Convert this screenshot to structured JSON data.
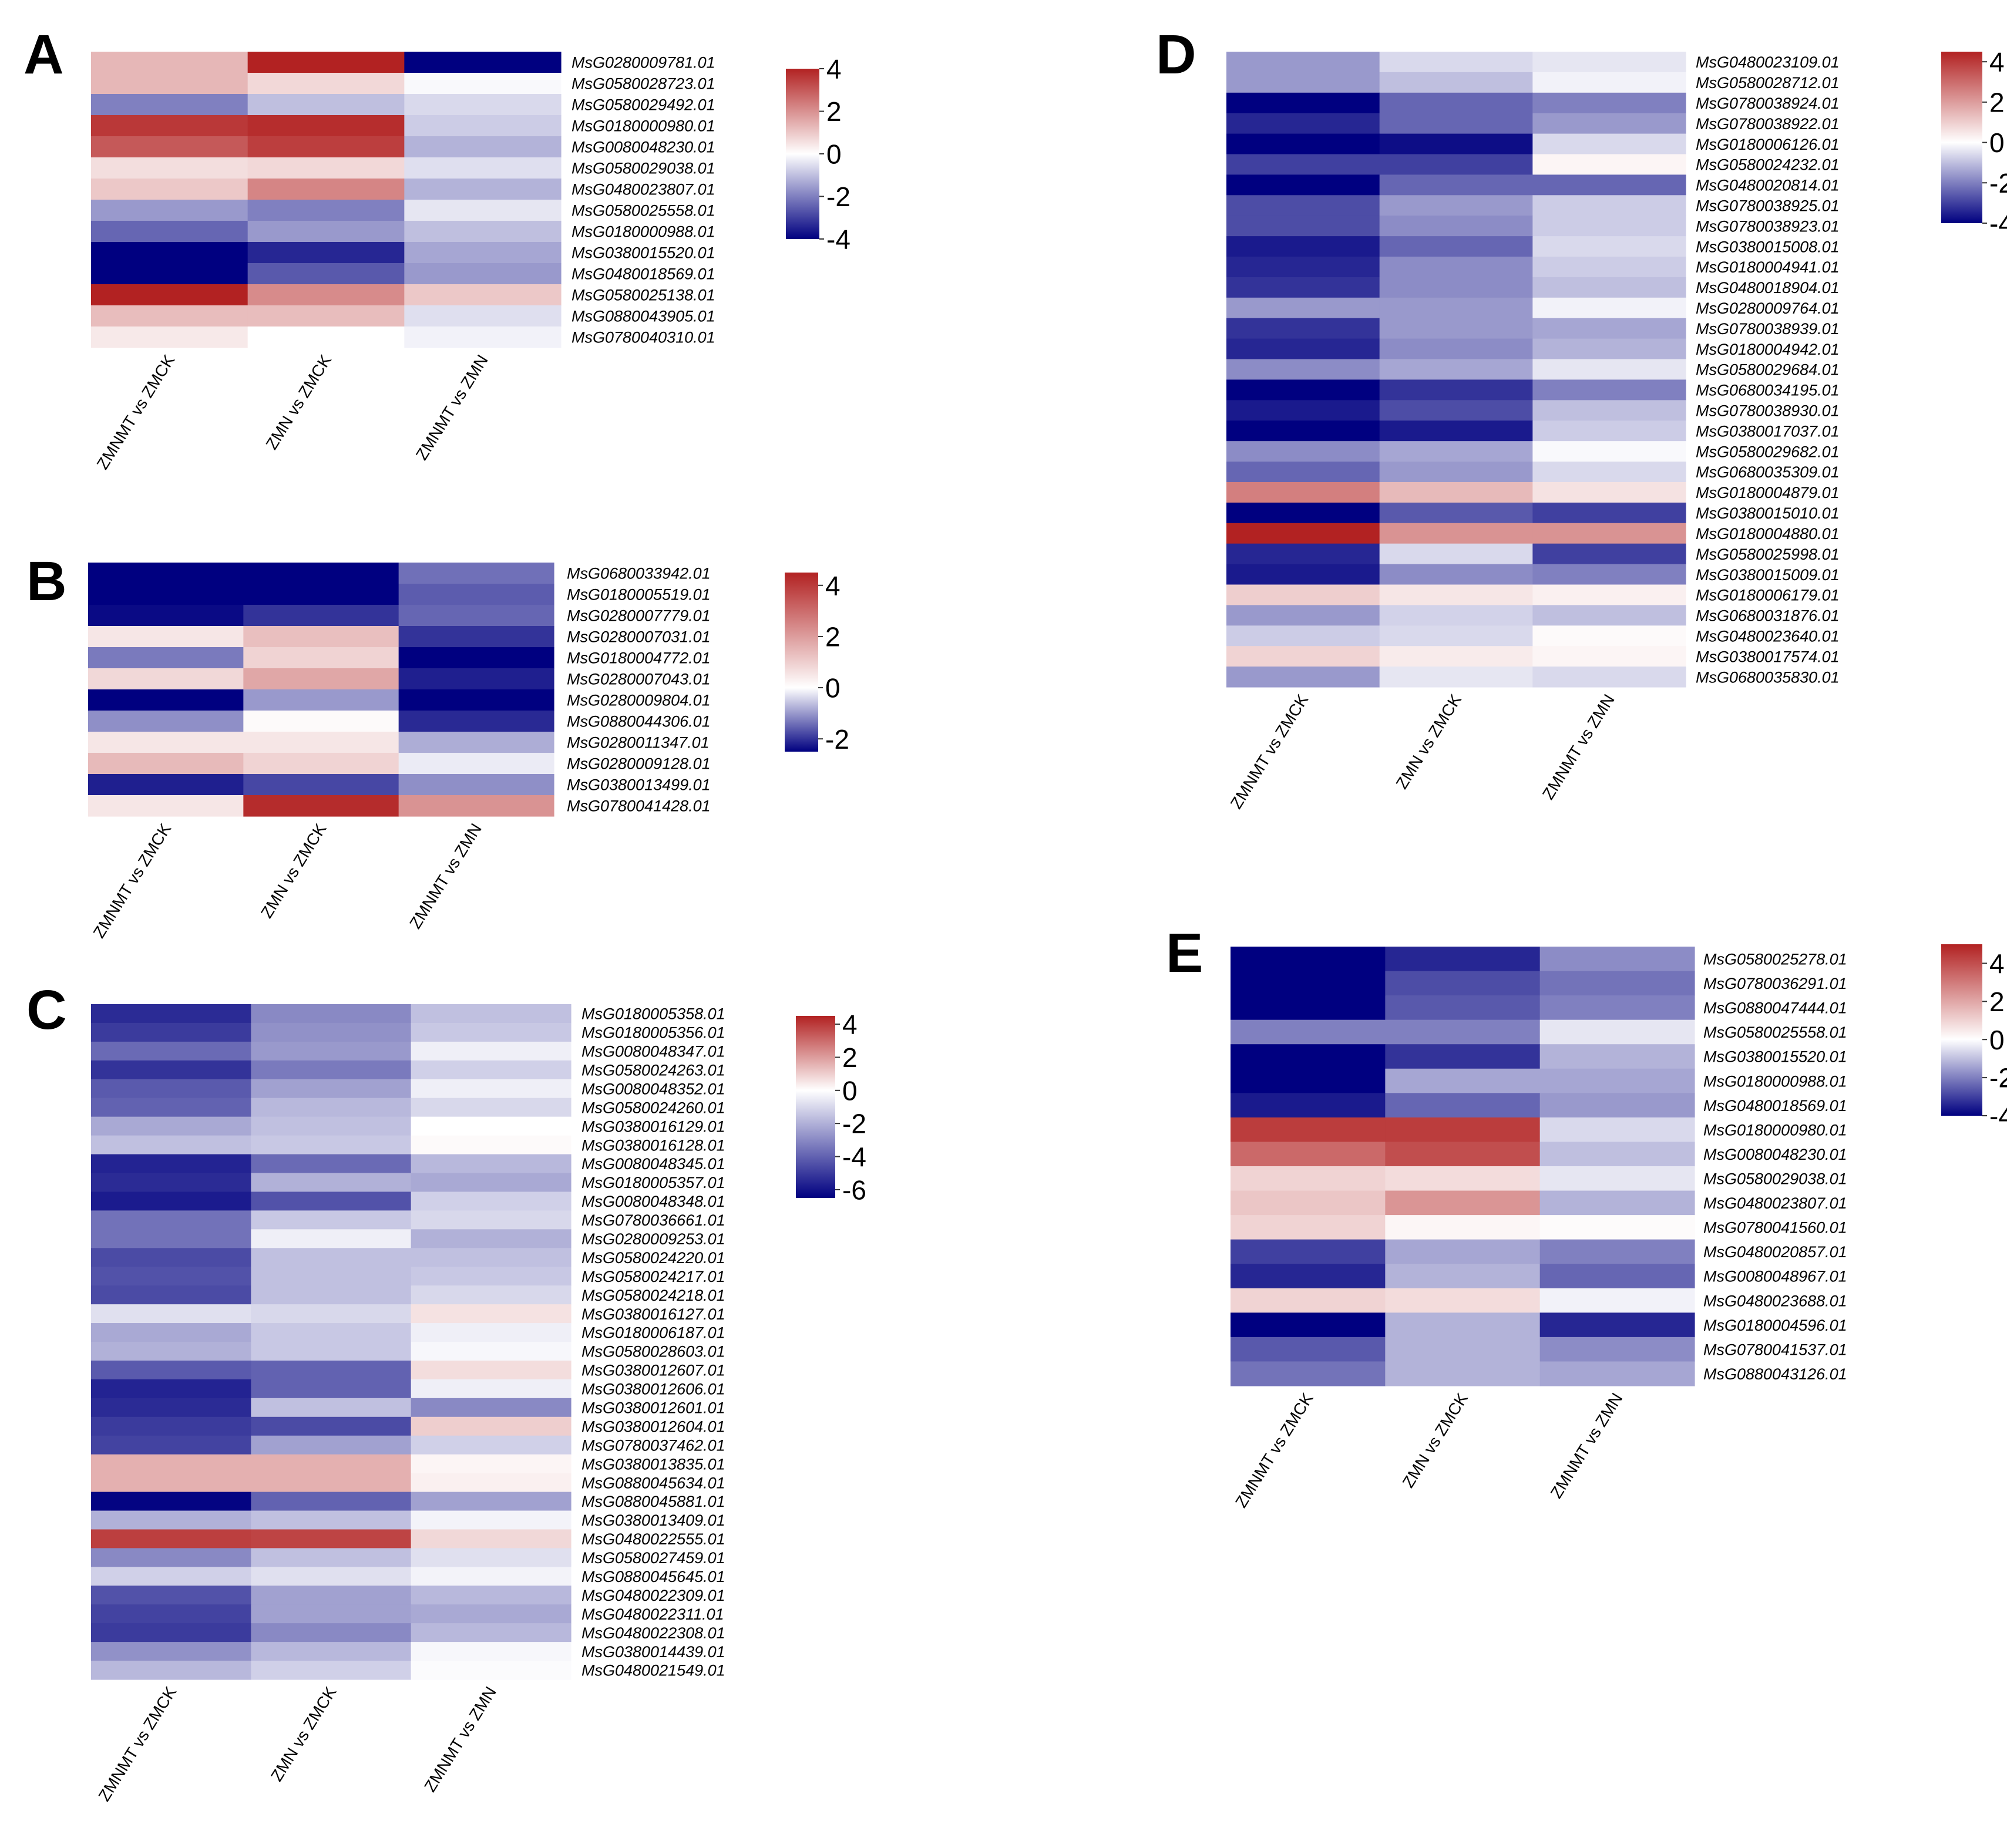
{
  "color_scale": {
    "low": "#000080",
    "mid": "#ffffff",
    "high": "#b22222"
  },
  "chart_data": [
    {
      "panel": "A",
      "type": "heatmap",
      "columns": [
        "ZMNMT vs ZMCK",
        "ZMN vs ZMCK",
        "ZMNMT vs ZMN"
      ],
      "rows": [
        "MsG0280009781.01",
        "MsG0580028723.01",
        "MsG0580029492.01",
        "MsG0180000980.01",
        "MsG0080048230.01",
        "MsG0580029038.01",
        "MsG0480023807.01",
        "MsG0580025558.01",
        "MsG0180000988.01",
        "MsG0380015520.01",
        "MsG0480018569.01",
        "MsG0580025138.01",
        "MsG0880043905.01",
        "MsG0780040310.01"
      ],
      "values": [
        [
          1.3,
          4.3,
          -4.0
        ],
        [
          1.3,
          0.7,
          -0.1
        ],
        [
          -2.0,
          -1.0,
          -0.6
        ],
        [
          3.6,
          3.8,
          -0.8
        ],
        [
          3.0,
          3.5,
          -1.2
        ],
        [
          0.6,
          0.7,
          -0.5
        ],
        [
          1.0,
          2.2,
          -1.2
        ],
        [
          -1.6,
          -2.0,
          -0.4
        ],
        [
          -2.4,
          -1.6,
          -1.0
        ],
        [
          -4.6,
          -3.4,
          -1.4
        ],
        [
          -4.1,
          -2.6,
          -1.6
        ],
        [
          4.3,
          2.1,
          1.0
        ],
        [
          1.2,
          1.2,
          -0.5
        ],
        [
          0.4,
          0.0,
          -0.2
        ]
      ],
      "colorbar": {
        "min": -4,
        "max": 4,
        "ticks": [
          4,
          2,
          0,
          -2,
          -4
        ]
      }
    },
    {
      "panel": "B",
      "type": "heatmap",
      "columns": [
        "ZMNMT vs ZMCK",
        "ZMN vs ZMCK",
        "ZMNMT vs ZMN"
      ],
      "rows": [
        "MsG0680033942.01",
        "MsG0180005519.01",
        "MsG0280007779.01",
        "MsG0280007031.01",
        "MsG0180004772.01",
        "MsG0280007043.01",
        "MsG0280009804.01",
        "MsG0880044306.01",
        "MsG0280011347.01",
        "MsG0280009128.01",
        "MsG0380013499.01",
        "MsG0780041428.01"
      ],
      "values": [
        [
          -3.2,
          -3.0,
          -1.4
        ],
        [
          -3.6,
          -3.2,
          -1.6
        ],
        [
          -2.4,
          -2.0,
          -1.5
        ],
        [
          0.5,
          1.3,
          -2.0
        ],
        [
          -1.3,
          0.9,
          -3.6
        ],
        [
          0.8,
          1.8,
          -2.2
        ],
        [
          -3.8,
          -1.0,
          -3.2
        ],
        [
          -1.1,
          0.1,
          -2.1
        ],
        [
          0.5,
          0.5,
          -0.8
        ],
        [
          1.4,
          0.9,
          -0.2
        ],
        [
          -2.2,
          -1.8,
          -1.1
        ],
        [
          0.5,
          4.3,
          2.2
        ]
      ],
      "colorbar": {
        "min": -2.5,
        "max": 4.5,
        "ticks": [
          4,
          2,
          0,
          -2
        ]
      }
    },
    {
      "panel": "C",
      "type": "heatmap",
      "columns": [
        "ZMNMT vs ZMCK",
        "ZMN vs ZMCK",
        "ZMNMT vs ZMN"
      ],
      "rows": [
        "MsG0180005358.01",
        "MsG0180005356.01",
        "MsG0080048347.01",
        "MsG0580024263.01",
        "MsG0080048352.01",
        "MsG0580024260.01",
        "MsG0380016129.01",
        "MsG0380016128.01",
        "MsG0080048345.01",
        "MsG0180005357.01",
        "MsG0080048348.01",
        "MsG0780036661.01",
        "MsG0280009253.01",
        "MsG0580024220.01",
        "MsG0580024217.01",
        "MsG0580024218.01",
        "MsG0380016127.01",
        "MsG0180006187.01",
        "MsG0580028603.01",
        "MsG0380012607.01",
        "MsG0380012606.01",
        "MsG0380012601.01",
        "MsG0380012604.01",
        "MsG0780037462.01",
        "MsG0380013835.01",
        "MsG0880045634.01",
        "MsG0880045881.01",
        "MsG0380013409.01",
        "MsG0480022555.01",
        "MsG0580027459.01",
        "MsG0880045645.01",
        "MsG0480022309.01",
        "MsG0480022311.01",
        "MsG0480022308.01",
        "MsG0380014439.01",
        "MsG0480021549.01"
      ],
      "values": [
        [
          -5.4,
          -3.0,
          -1.6
        ],
        [
          -5.0,
          -2.8,
          -1.4
        ],
        [
          -3.8,
          -2.6,
          -0.4
        ],
        [
          -5.2,
          -3.4,
          -1.2
        ],
        [
          -4.2,
          -2.4,
          -0.4
        ],
        [
          -4.0,
          -1.8,
          -1.0
        ],
        [
          -2.2,
          -1.6,
          0.0
        ],
        [
          -1.6,
          -1.4,
          0.1
        ],
        [
          -5.6,
          -3.8,
          -1.8
        ],
        [
          -5.4,
          -2.0,
          -2.2
        ],
        [
          -5.8,
          -4.4,
          -1.2
        ],
        [
          -3.6,
          -1.4,
          -1.0
        ],
        [
          -3.6,
          -0.4,
          -2.0
        ],
        [
          -4.6,
          -1.6,
          -1.6
        ],
        [
          -4.4,
          -1.6,
          -1.4
        ],
        [
          -4.6,
          -1.6,
          -1.0
        ],
        [
          -0.8,
          -1.0,
          0.6
        ],
        [
          -2.2,
          -1.4,
          -0.4
        ],
        [
          -2.0,
          -1.4,
          -0.2
        ],
        [
          -4.2,
          -4.0,
          0.7
        ],
        [
          -5.6,
          -4.0,
          -0.4
        ],
        [
          -5.4,
          -1.6,
          -3.0
        ],
        [
          -5.0,
          -4.6,
          1.0
        ],
        [
          -4.8,
          -2.4,
          -1.2
        ],
        [
          1.6,
          1.6,
          0.2
        ],
        [
          1.6,
          1.6,
          0.3
        ],
        [
          -6.4,
          -4.0,
          -2.4
        ],
        [
          -2.0,
          -1.6,
          -0.3
        ],
        [
          3.9,
          3.8,
          0.8
        ],
        [
          -3.0,
          -1.6,
          -0.8
        ],
        [
          -1.2,
          -0.8,
          -0.3
        ],
        [
          -4.4,
          -2.4,
          -1.8
        ],
        [
          -4.8,
          -2.4,
          -2.2
        ],
        [
          -5.0,
          -3.0,
          -1.8
        ],
        [
          -2.8,
          -1.8,
          -0.2
        ],
        [
          -1.8,
          -1.2,
          -0.1
        ]
      ],
      "colorbar": {
        "min": -6.5,
        "max": 4.5,
        "ticks": [
          4,
          2,
          0,
          -2,
          -4,
          -6
        ]
      }
    },
    {
      "panel": "D",
      "type": "heatmap",
      "columns": [
        "ZMNMT vs ZMCK",
        "ZMN vs ZMCK",
        "ZMNMT vs ZMN"
      ],
      "rows": [
        "MsG0480023109.01",
        "MsG0580028712.01",
        "MsG0780038924.01",
        "MsG0780038922.01",
        "MsG0180006126.01",
        "MsG0580024232.01",
        "MsG0480020814.01",
        "MsG0780038925.01",
        "MsG0780038923.01",
        "MsG0380015008.01",
        "MsG0180004941.01",
        "MsG0480018904.01",
        "MsG0280009764.01",
        "MsG0780038939.01",
        "MsG0180004942.01",
        "MsG0580029684.01",
        "MsG0680034195.01",
        "MsG0780038930.01",
        "MsG0380017037.01",
        "MsG0580029682.01",
        "MsG0680035309.01",
        "MsG0180004879.01",
        "MsG0380015010.01",
        "MsG0180004880.01",
        "MsG0580025998.01",
        "MsG0380015009.01",
        "MsG0180006179.01",
        "MsG0680031876.01",
        "MsG0480023640.01",
        "MsG0380017574.01",
        "MsG0680035830.01"
      ],
      "values": [
        [
          -1.6,
          -0.6,
          -0.4
        ],
        [
          -1.6,
          -1.0,
          -0.2
        ],
        [
          -4.0,
          -2.4,
          -2.0
        ],
        [
          -3.4,
          -2.4,
          -1.6
        ],
        [
          -4.4,
          -3.8,
          -0.6
        ],
        [
          -3.0,
          -3.0,
          0.2
        ],
        [
          -4.6,
          -2.4,
          -2.4
        ],
        [
          -2.8,
          -1.6,
          -0.8
        ],
        [
          -2.8,
          -1.8,
          -0.8
        ],
        [
          -3.6,
          -2.4,
          -0.6
        ],
        [
          -3.4,
          -1.8,
          -0.8
        ],
        [
          -3.2,
          -1.8,
          -1.0
        ],
        [
          -1.6,
          -1.6,
          -0.2
        ],
        [
          -3.2,
          -1.6,
          -1.4
        ],
        [
          -3.4,
          -1.8,
          -1.2
        ],
        [
          -1.8,
          -1.4,
          -0.4
        ],
        [
          -4.8,
          -3.2,
          -2.0
        ],
        [
          -3.6,
          -2.8,
          -1.0
        ],
        [
          -4.4,
          -3.6,
          -0.8
        ],
        [
          -1.8,
          -1.4,
          -0.1
        ],
        [
          -2.4,
          -1.6,
          -0.6
        ],
        [
          2.6,
          1.4,
          0.6
        ],
        [
          -4.6,
          -2.6,
          -3.0
        ],
        [
          4.5,
          2.2,
          2.2
        ],
        [
          -3.4,
          -0.6,
          -3.0
        ],
        [
          -3.6,
          -1.8,
          -2.0
        ],
        [
          1.0,
          0.5,
          0.3
        ],
        [
          -1.6,
          -0.7,
          -1.0
        ],
        [
          -0.8,
          -0.6,
          0.1
        ],
        [
          0.9,
          0.4,
          0.2
        ],
        [
          -1.6,
          -0.4,
          -0.6
        ]
      ],
      "colorbar": {
        "min": -4,
        "max": 4.5,
        "ticks": [
          4,
          2,
          0,
          -2,
          -4
        ]
      }
    },
    {
      "panel": "E",
      "type": "heatmap",
      "columns": [
        "ZMNMT vs ZMCK",
        "ZMN vs ZMCK",
        "ZMNMT vs ZMN"
      ],
      "rows": [
        "MsG0580025278.01",
        "MsG0780036291.01",
        "MsG0880047444.01",
        "MsG0580025558.01",
        "MsG0380015520.01",
        "MsG0180000988.01",
        "MsG0480018569.01",
        "MsG0180000980.01",
        "MsG0080048230.01",
        "MsG0580029038.01",
        "MsG0480023807.01",
        "MsG0780041560.01",
        "MsG0480020857.01",
        "MsG0080048967.01",
        "MsG0480023688.01",
        "MsG0180004596.01",
        "MsG0780041537.01",
        "MsG0880043126.01"
      ],
      "values": [
        [
          -5.0,
          -3.4,
          -1.8
        ],
        [
          -5.0,
          -2.8,
          -2.2
        ],
        [
          -4.6,
          -2.6,
          -2.0
        ],
        [
          -2.0,
          -2.0,
          -0.4
        ],
        [
          -4.6,
          -3.2,
          -1.2
        ],
        [
          -4.0,
          -1.4,
          -1.4
        ],
        [
          -3.6,
          -2.4,
          -1.6
        ],
        [
          4.4,
          4.4,
          -0.6
        ],
        [
          3.4,
          4.0,
          -1.0
        ],
        [
          1.0,
          0.8,
          -0.4
        ],
        [
          1.3,
          2.4,
          -1.2
        ],
        [
          1.0,
          0.2,
          0.1
        ],
        [
          -3.0,
          -1.4,
          -2.0
        ],
        [
          -3.4,
          -1.2,
          -2.4
        ],
        [
          1.0,
          0.8,
          -0.2
        ],
        [
          -4.6,
          -1.2,
          -3.4
        ],
        [
          -2.6,
          -1.2,
          -1.8
        ],
        [
          -2.2,
          -1.2,
          -1.4
        ]
      ],
      "colorbar": {
        "min": -4,
        "max": 5,
        "ticks": [
          4,
          2,
          0,
          -2,
          -4
        ]
      }
    }
  ]
}
